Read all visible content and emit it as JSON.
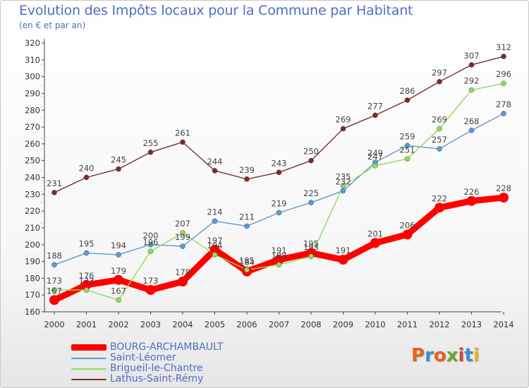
{
  "chart_data": {
    "type": "line",
    "title": "Evolution des Impôts locaux pour la Commune par Habitant",
    "subtitle": "(en € et par an)",
    "xlabel": "",
    "ylabel": "",
    "ylim": [
      160,
      320
    ],
    "y_ticks": [
      160,
      170,
      180,
      190,
      200,
      210,
      220,
      230,
      240,
      250,
      260,
      270,
      280,
      290,
      300,
      310,
      320
    ],
    "x": [
      "2000",
      "2001",
      "2002",
      "2003",
      "2004",
      "2005",
      "2006",
      "2007",
      "2008",
      "2009",
      "2010",
      "2011",
      "2012",
      "2013",
      "2014"
    ],
    "series": [
      {
        "name": "BOURG-ARCHAMBAULT",
        "color": "#ff0000",
        "emphasis": true,
        "values": [
          167,
          176,
          179,
          173,
          178,
          197,
          184,
          191,
          195,
          191,
          201,
          206,
          222,
          226,
          228
        ]
      },
      {
        "name": "Saint-Léomer",
        "color": "#5b9bd5",
        "emphasis": false,
        "values": [
          188,
          195,
          194,
          200,
          199,
          214,
          211,
          219,
          225,
          232,
          249,
          259,
          257,
          268,
          278
        ]
      },
      {
        "name": "Brigueil-le-Chantre",
        "color": "#8fdc5a",
        "emphasis": false,
        "values": [
          173,
          173,
          167,
          196,
          207,
          194,
          185,
          188,
          193,
          235,
          247,
          251,
          269,
          292,
          296
        ]
      },
      {
        "name": "Lathus-Saint-Rémy",
        "color": "#7b2c2c",
        "emphasis": false,
        "values": [
          231,
          240,
          245,
          255,
          261,
          244,
          239,
          243,
          250,
          269,
          277,
          286,
          297,
          307,
          312
        ]
      }
    ],
    "grid": false,
    "legend_position": "bottom-left"
  },
  "brand": {
    "letters": [
      "P",
      "r",
      "o",
      "x",
      "i",
      "t",
      "i"
    ],
    "colors": [
      "#e8611a",
      "#3a8fd0",
      "#e8611a",
      "#6aa62f",
      "#d9413a",
      "#3a8fd0",
      "#e8b51a"
    ]
  }
}
